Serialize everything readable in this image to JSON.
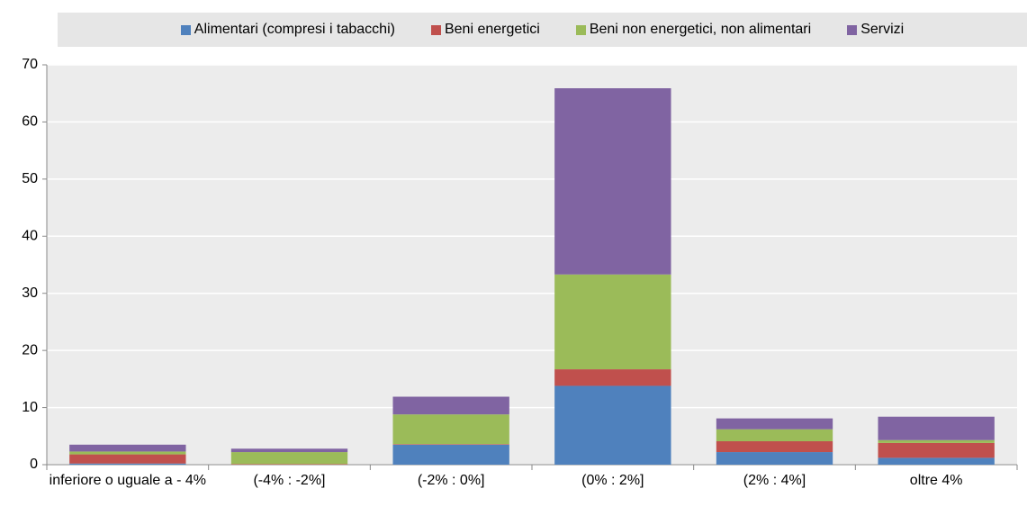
{
  "chart_data": {
    "type": "stacked_bar",
    "categories": [
      "inferiore o uguale a - 4%",
      "(-4% : -2%]",
      "(-2% : 0%]",
      "(0% : 2%]",
      "(2% : 4%]",
      "oltre 4%"
    ],
    "series": [
      {
        "name": "Alimentari (compresi i tabacchi)",
        "color": "#4f81bd",
        "values": [
          0.2,
          0,
          3.5,
          13.8,
          2.2,
          1.2
        ]
      },
      {
        "name": "Beni energetici",
        "color": "#c0504d",
        "values": [
          1.6,
          0.1,
          0.1,
          2.9,
          1.9,
          2.6
        ]
      },
      {
        "name": "Beni non energetici, non alimentari",
        "color": "#9bbb59",
        "values": [
          0.5,
          2.1,
          5.2,
          16.6,
          2.1,
          0.5
        ]
      },
      {
        "name": "Servizi",
        "color": "#8064a2",
        "values": [
          1.2,
          0.6,
          3.1,
          32.6,
          1.9,
          4.1
        ]
      }
    ],
    "ylim": [
      0,
      70
    ],
    "yticks": [
      0,
      10,
      20,
      30,
      40,
      50,
      60,
      70
    ],
    "grid": true,
    "legend": "top"
  }
}
